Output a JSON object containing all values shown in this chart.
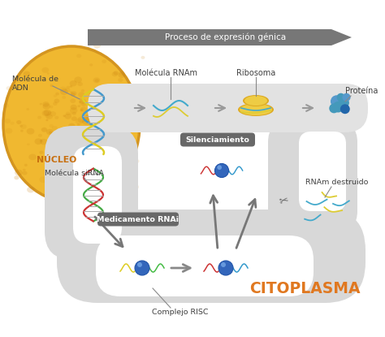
{
  "background_color": "#ffffff",
  "nucleus_color": "#f0b830",
  "nucleus_edge_color": "#d49520",
  "nucleus_texture_color": "#e8a820",
  "tube_color": "#e2e2e2",
  "cytoplasm_color": "#d8d8d8",
  "process_arrow_color": "#777777",
  "gray_arrow_color": "#888888",
  "dark_gray_arrow_color": "#666666",
  "badge_color": "#686868",
  "badge_text_color": "#ffffff",
  "citoplasma_text_color": "#e07820",
  "nucleo_text_color": "#c87010",
  "text_color": "#404040",
  "labels": {
    "proceso": "Proceso de expresión génica",
    "molecula_adn": "Molécula de\nADN",
    "molecula_rnam": "Molécula RNAm",
    "ribosoma": "Ribosoma",
    "proteina": "Proteína",
    "nucleo": "NÚCLEO",
    "silenciamiento": "Silenciamiento",
    "molecula_sirna": "Molécula siRNA",
    "medicamento": "Medicamento RNAi",
    "complejo_risc": "Complejo RISC",
    "rnam_destruido": "RNAm destruido",
    "citoplasma": "CITOPLASMA"
  },
  "figsize": [
    4.74,
    4.15
  ],
  "dpi": 100,
  "xlim": [
    0,
    474
  ],
  "ylim": [
    0,
    415
  ]
}
